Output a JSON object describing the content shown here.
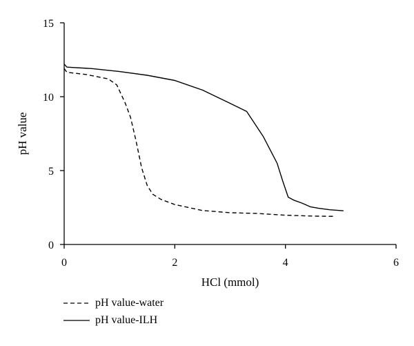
{
  "chart_data": {
    "type": "line",
    "title": "",
    "xlabel": "HCl (mmol)",
    "ylabel": "pH value",
    "xlim": [
      0,
      6
    ],
    "ylim": [
      0,
      15
    ],
    "xticks": [
      0,
      2,
      4,
      6
    ],
    "yticks": [
      0,
      5,
      10,
      15
    ],
    "grid": false,
    "legend_position": "bottom-left",
    "series": [
      {
        "name": "pH value-water",
        "style": "dashed",
        "color": "#000000",
        "x": [
          0,
          0.05,
          0.4,
          0.8,
          0.95,
          1.1,
          1.2,
          1.3,
          1.4,
          1.5,
          1.6,
          1.75,
          2.0,
          2.5,
          3.0,
          3.5,
          4.0,
          4.5,
          4.9
        ],
        "y": [
          11.9,
          11.65,
          11.5,
          11.2,
          10.8,
          9.6,
          8.6,
          7.0,
          5.2,
          4.0,
          3.4,
          3.05,
          2.7,
          2.3,
          2.15,
          2.1,
          1.98,
          1.92,
          1.9
        ]
      },
      {
        "name": "pH value-ILH",
        "style": "solid",
        "color": "#000000",
        "x": [
          0,
          0.05,
          0.5,
          1.0,
          1.5,
          2.0,
          2.5,
          3.0,
          3.3,
          3.6,
          3.85,
          3.95,
          4.05,
          4.15,
          4.3,
          4.45,
          4.6,
          4.8,
          5.05
        ],
        "y": [
          12.2,
          12.0,
          11.9,
          11.7,
          11.45,
          11.1,
          10.45,
          9.55,
          9.0,
          7.3,
          5.5,
          4.3,
          3.2,
          3.0,
          2.8,
          2.55,
          2.45,
          2.35,
          2.28
        ]
      }
    ]
  }
}
